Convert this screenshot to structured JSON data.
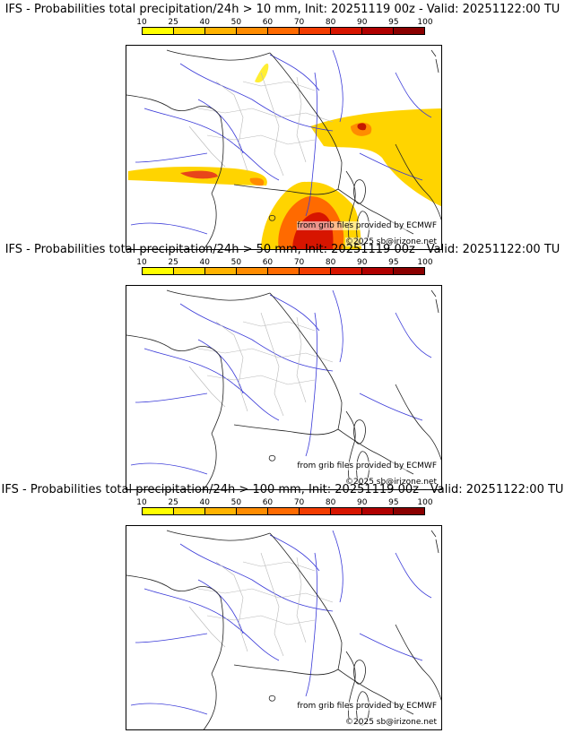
{
  "colorbar": {
    "ticks": [
      "10",
      "25",
      "40",
      "50",
      "60",
      "70",
      "80",
      "90",
      "95",
      "100"
    ],
    "colors": [
      "#ffff00",
      "#ffdd00",
      "#ffb300",
      "#ff8c00",
      "#ff6a00",
      "#f33c00",
      "#d71500",
      "#b00000",
      "#8a0000",
      "#5c0000"
    ]
  },
  "panels": [
    {
      "title": "IFS - Probabilities total precipitation/24h > 10 mm, Init: 20251119 00z - Valid: 20251122:00 TU",
      "source_credit": "from grib files provided by ECMWF",
      "copyright": "©2025 sb@irizone.net"
    },
    {
      "title": "IFS - Probabilities total precipitation/24h > 50 mm, Init: 20251119 00z - Valid: 20251122:00 TU",
      "source_credit": "from grib files provided by ECMWF",
      "copyright": "©2025 sb@irizone.net"
    },
    {
      "title": "IFS - Probabilities total precipitation/24h > 100 mm, Init: 20251119 00z - Valid: 20251122:00 TU",
      "source_credit": "from grib files provided by ECMWF",
      "copyright": "©2025 sb@irizone.net"
    }
  ]
}
